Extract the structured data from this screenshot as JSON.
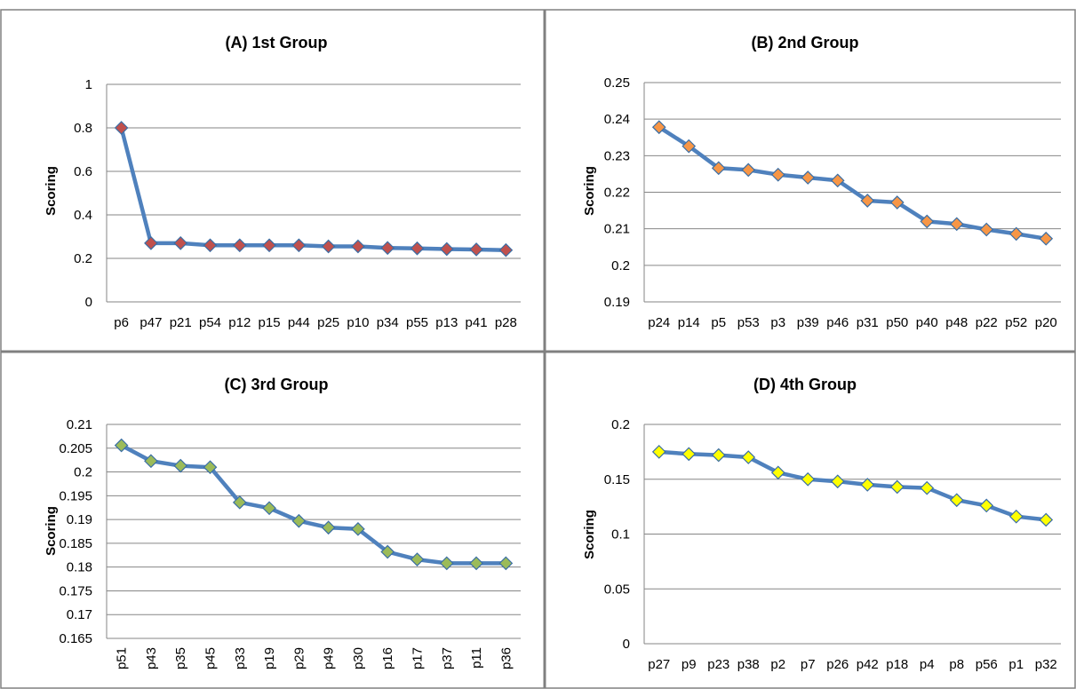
{
  "chart_data": [
    {
      "type": "line",
      "title": "(A) 1st Group",
      "ylabel": "Scoring",
      "xlabel": "",
      "ylim": [
        0,
        1
      ],
      "yticks": [
        "0",
        "0.2",
        "0.4",
        "0.6",
        "0.8",
        "1"
      ],
      "ytick_values": [
        0,
        0.2,
        0.4,
        0.6,
        0.8,
        1
      ],
      "categories": [
        "p6",
        "p47",
        "p21",
        "p54",
        "p12",
        "p15",
        "p44",
        "p25",
        "p10",
        "p34",
        "p55",
        "p13",
        "p41",
        "p28"
      ],
      "values": [
        0.8,
        0.27,
        0.27,
        0.26,
        0.26,
        0.26,
        0.26,
        0.255,
        0.255,
        0.248,
        0.246,
        0.243,
        0.241,
        0.238
      ],
      "marker_colors": [
        "#c0504d",
        "#c0504d",
        "#c0504d",
        "#c0504d",
        "#c0504d",
        "#c0504d",
        "#c0504d",
        "#c0504d",
        "#c0504d",
        "#c0504d",
        "#c0504d",
        "#c0504d",
        "#c0504d",
        "#c0504d"
      ],
      "line_color": "#4f81bd",
      "grid": true,
      "rotate_x": false
    },
    {
      "type": "line",
      "title": "(B) 2nd Group",
      "ylabel": "Scoring",
      "xlabel": "",
      "ylim": [
        0.19,
        0.25
      ],
      "yticks": [
        "0.19",
        "0.2",
        "0.21",
        "0.22",
        "0.23",
        "0.24",
        "0.25"
      ],
      "ytick_values": [
        0.19,
        0.2,
        0.21,
        0.22,
        0.23,
        0.24,
        0.25
      ],
      "categories": [
        "p24",
        "p14",
        "p5",
        "p53",
        "p3",
        "p39",
        "p46",
        "p31",
        "p50",
        "p40",
        "p48",
        "p22",
        "p52",
        "p20"
      ],
      "values": [
        0.2378,
        0.2326,
        0.2266,
        0.2261,
        0.2248,
        0.224,
        0.2232,
        0.2177,
        0.2172,
        0.212,
        0.2113,
        0.2098,
        0.2086,
        0.2073
      ],
      "marker_colors": [
        "#f79646",
        "#f79646",
        "#f79646",
        "#f79646",
        "#f79646",
        "#f79646",
        "#f79646",
        "#f79646",
        "#f79646",
        "#f79646",
        "#f79646",
        "#f79646",
        "#f79646",
        "#f79646"
      ],
      "line_color": "#4f81bd",
      "grid": true,
      "rotate_x": false
    },
    {
      "type": "line",
      "title": "(C) 3rd Group",
      "ylabel": "Scoring",
      "xlabel": "",
      "ylim": [
        0.165,
        0.21
      ],
      "yticks": [
        "0.165",
        "0.17",
        "0.175",
        "0.18",
        "0.185",
        "0.19",
        "0.195",
        "0.2",
        "0.205",
        "0.21"
      ],
      "ytick_values": [
        0.165,
        0.17,
        0.175,
        0.18,
        0.185,
        0.19,
        0.195,
        0.2,
        0.205,
        0.21
      ],
      "categories": [
        "p51",
        "p43",
        "p35",
        "p45",
        "p33",
        "p19",
        "p29",
        "p49",
        "p30",
        "p16",
        "p17",
        "p37",
        "p11",
        "p36"
      ],
      "values": [
        0.2056,
        0.2023,
        0.2013,
        0.201,
        0.1936,
        0.1924,
        0.1897,
        0.1883,
        0.188,
        0.1832,
        0.1816,
        0.1808,
        0.1808,
        0.1808
      ],
      "marker_colors": [
        "#9bbb59",
        "#9bbb59",
        "#9bbb59",
        "#9bbb59",
        "#9bbb59",
        "#9bbb59",
        "#9bbb59",
        "#9bbb59",
        "#9bbb59",
        "#9bbb59",
        "#9bbb59",
        "#9bbb59",
        "#9bbb59",
        "#9bbb59"
      ],
      "line_color": "#4f81bd",
      "grid": true,
      "rotate_x": true
    },
    {
      "type": "line",
      "title": "(D) 4th Group",
      "ylabel": "Scoring",
      "xlabel": "",
      "ylim": [
        0,
        0.2
      ],
      "yticks": [
        "0",
        "0.05",
        "0.1",
        "0.15",
        "0.2"
      ],
      "ytick_values": [
        0,
        0.05,
        0.1,
        0.15,
        0.2
      ],
      "categories": [
        "p27",
        "p9",
        "p23",
        "p38",
        "p2",
        "p7",
        "p26",
        "p42",
        "p18",
        "p4",
        "p8",
        "p56",
        "p1",
        "p32"
      ],
      "values": [
        0.175,
        0.173,
        0.172,
        0.17,
        0.156,
        0.15,
        0.148,
        0.145,
        0.143,
        0.142,
        0.131,
        0.126,
        0.116,
        0.113
      ],
      "marker_colors": [
        "#ffff00",
        "#ffff00",
        "#ffff00",
        "#ffff00",
        "#ffff00",
        "#ffff00",
        "#ffff00",
        "#ffff00",
        "#ffff00",
        "#ffff00",
        "#ffff00",
        "#ffff00",
        "#ffff00",
        "#ffff00"
      ],
      "line_color": "#4f81bd",
      "grid": true,
      "rotate_x": false
    }
  ]
}
